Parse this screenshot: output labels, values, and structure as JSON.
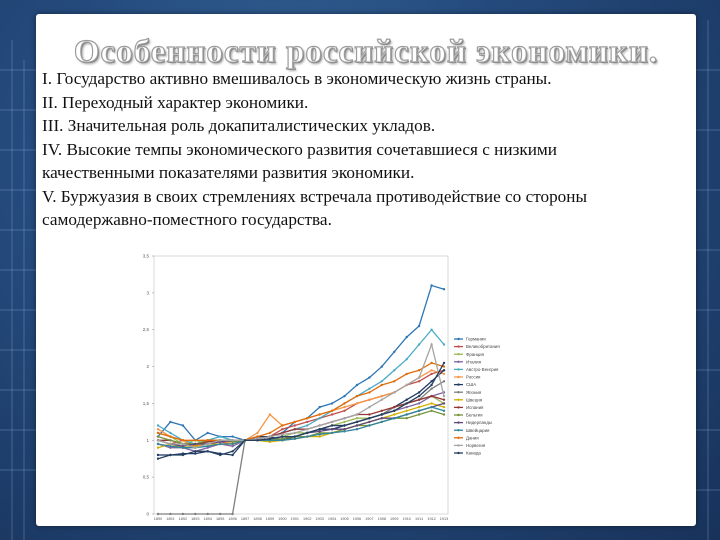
{
  "slide": {
    "title": "Особенности российской экономики.",
    "lines": [
      "I. Государство активно вмешивалось в экономическую жизнь страны.",
      "II. Переходный характер экономики.",
      "III. Значительная роль докапиталистических укладов.",
      "IV. Высокие темпы экономического развития сочетавшиеся с низкими",
      "качественными показателями развития экономики.",
      "V. Буржуазия в своих стремлениях встречала противодействие со стороны",
      "самодержавно-поместного государства."
    ]
  },
  "colors": {
    "background": "#1f3c66",
    "card": "#ffffff",
    "text": "#111111"
  },
  "chart_data": {
    "type": "line",
    "title": "",
    "xlabel": "",
    "ylabel": "",
    "ylim": [
      0,
      3.5
    ],
    "yticks": [
      "0",
      "0,5",
      "1",
      "1,5",
      "2",
      "2,5",
      "3",
      "3,5"
    ],
    "grid": false,
    "legend_position": "right",
    "x": [
      "1890",
      "1891",
      "1892",
      "1893",
      "1894",
      "1895",
      "1896",
      "1897",
      "1898",
      "1899",
      "1900",
      "1901",
      "1902",
      "1903",
      "1904",
      "1905",
      "1906",
      "1907",
      "1908",
      "1909",
      "1910",
      "1911",
      "1912",
      "1913"
    ],
    "series": [
      {
        "name": "Германия",
        "color": "#2e75b6",
        "values": [
          1.05,
          1.25,
          1.2,
          1.0,
          1.1,
          1.05,
          1.05,
          1.0,
          1.02,
          1.05,
          1.1,
          1.25,
          1.3,
          1.45,
          1.5,
          1.6,
          1.75,
          1.85,
          2.0,
          2.2,
          2.4,
          2.55,
          3.1,
          3.05
        ]
      },
      {
        "name": "Великобритания",
        "color": "#c0504d",
        "values": [
          1.0,
          0.95,
          1.0,
          0.92,
          1.0,
          0.98,
          0.95,
          1.0,
          1.02,
          1.05,
          1.15,
          1.2,
          1.25,
          1.3,
          1.35,
          1.4,
          1.5,
          1.55,
          1.6,
          1.65,
          1.75,
          1.8,
          1.9,
          1.95
        ]
      },
      {
        "name": "Франция",
        "color": "#9bbb59",
        "values": [
          1.1,
          1.05,
          0.95,
          1.0,
          0.95,
          1.0,
          0.98,
          1.0,
          1.0,
          1.02,
          1.05,
          1.1,
          1.1,
          1.15,
          1.2,
          1.25,
          1.3,
          1.3,
          1.35,
          1.4,
          1.5,
          1.55,
          1.6,
          1.5
        ]
      },
      {
        "name": "Италия",
        "color": "#8064a2",
        "values": [
          0.95,
          0.9,
          0.9,
          0.85,
          0.9,
          0.95,
          0.92,
          1.0,
          1.0,
          1.0,
          1.05,
          1.05,
          1.1,
          1.15,
          1.15,
          1.2,
          1.25,
          1.3,
          1.35,
          1.4,
          1.45,
          1.5,
          1.6,
          1.65
        ]
      },
      {
        "name": "Австро-Венгрия",
        "color": "#4bacc6",
        "values": [
          1.2,
          1.1,
          1.0,
          0.95,
          1.0,
          1.05,
          1.0,
          1.0,
          1.05,
          1.05,
          1.1,
          1.15,
          1.2,
          1.3,
          1.4,
          1.5,
          1.6,
          1.7,
          1.8,
          1.95,
          2.1,
          2.3,
          2.5,
          2.3
        ]
      },
      {
        "name": "Россия",
        "color": "#f79646",
        "values": [
          1.15,
          1.05,
          1.0,
          0.9,
          1.0,
          1.0,
          0.95,
          1.0,
          1.1,
          1.35,
          1.2,
          1.25,
          1.3,
          1.35,
          1.4,
          1.45,
          1.5,
          1.55,
          1.6,
          1.65,
          1.75,
          1.85,
          1.95,
          1.9
        ]
      },
      {
        "name": "США",
        "color": "#1f3864",
        "values": [
          0.8,
          0.8,
          0.82,
          0.82,
          0.85,
          0.82,
          0.8,
          1.0,
          1.05,
          1.05,
          1.0,
          1.05,
          1.1,
          1.15,
          1.15,
          1.2,
          1.25,
          1.3,
          1.35,
          1.45,
          1.55,
          1.65,
          1.8,
          1.95
        ]
      },
      {
        "name": "Япония",
        "color": "#7f7f7f",
        "values": [
          0,
          0,
          0,
          0,
          0,
          0,
          0,
          1.0,
          1.0,
          1.0,
          1.05,
          1.05,
          1.1,
          1.15,
          1.2,
          1.2,
          1.25,
          1.3,
          1.35,
          1.45,
          1.5,
          1.55,
          1.7,
          1.8
        ]
      },
      {
        "name": "Швеция",
        "color": "#d4b000",
        "values": [
          0.9,
          0.95,
          0.9,
          0.92,
          0.95,
          0.95,
          0.95,
          1.0,
          1.0,
          0.98,
          1.0,
          1.02,
          1.05,
          1.05,
          1.1,
          1.15,
          1.2,
          1.25,
          1.3,
          1.35,
          1.4,
          1.45,
          1.5,
          1.45
        ]
      },
      {
        "name": "Испания",
        "color": "#943634",
        "values": [
          1.0,
          1.0,
          0.95,
          0.95,
          0.98,
          1.0,
          1.0,
          1.0,
          1.02,
          1.05,
          1.1,
          1.15,
          1.15,
          1.2,
          1.25,
          1.3,
          1.35,
          1.35,
          1.4,
          1.45,
          1.5,
          1.55,
          1.6,
          1.55
        ]
      },
      {
        "name": "Бельгия",
        "color": "#76923c",
        "values": [
          1.05,
          1.0,
          0.95,
          0.95,
          1.0,
          1.0,
          0.98,
          1.0,
          1.0,
          1.0,
          1.02,
          1.05,
          1.05,
          1.1,
          1.1,
          1.15,
          1.2,
          1.2,
          1.25,
          1.3,
          1.3,
          1.35,
          1.4,
          1.35
        ]
      },
      {
        "name": "Нидерланды",
        "color": "#5f497a",
        "values": [
          1.0,
          0.95,
          0.92,
          0.95,
          0.95,
          0.98,
          1.0,
          1.0,
          1.0,
          1.02,
          1.05,
          1.05,
          1.1,
          1.12,
          1.15,
          1.15,
          1.2,
          1.25,
          1.3,
          1.3,
          1.35,
          1.4,
          1.45,
          1.5
        ]
      },
      {
        "name": "Швейцария",
        "color": "#31859c",
        "values": [
          0.95,
          0.92,
          0.9,
          0.9,
          0.92,
          0.95,
          0.95,
          1.0,
          1.0,
          1.0,
          1.0,
          1.02,
          1.05,
          1.08,
          1.1,
          1.12,
          1.15,
          1.2,
          1.25,
          1.3,
          1.35,
          1.4,
          1.45,
          1.4
        ]
      },
      {
        "name": "Дания",
        "color": "#e36c09",
        "values": [
          1.1,
          1.05,
          1.0,
          1.0,
          1.0,
          1.0,
          1.0,
          1.0,
          1.05,
          1.1,
          1.2,
          1.25,
          1.3,
          1.35,
          1.4,
          1.5,
          1.6,
          1.65,
          1.75,
          1.8,
          1.9,
          1.95,
          2.05,
          2.0
        ]
      },
      {
        "name": "Норвегия",
        "color": "#a5a5a5",
        "values": [
          1.0,
          0.95,
          0.95,
          0.9,
          0.95,
          1.0,
          1.0,
          1.0,
          1.02,
          1.05,
          1.08,
          1.1,
          1.15,
          1.2,
          1.25,
          1.3,
          1.35,
          1.45,
          1.55,
          1.65,
          1.75,
          1.85,
          2.3,
          1.6
        ]
      },
      {
        "name": "Канада",
        "color": "#254061",
        "values": [
          0.75,
          0.8,
          0.8,
          0.85,
          0.85,
          0.8,
          0.85,
          1.0,
          1.0,
          1.02,
          1.05,
          1.05,
          1.1,
          1.15,
          1.2,
          1.2,
          1.25,
          1.3,
          1.35,
          1.4,
          1.5,
          1.6,
          1.75,
          2.05
        ]
      }
    ]
  }
}
